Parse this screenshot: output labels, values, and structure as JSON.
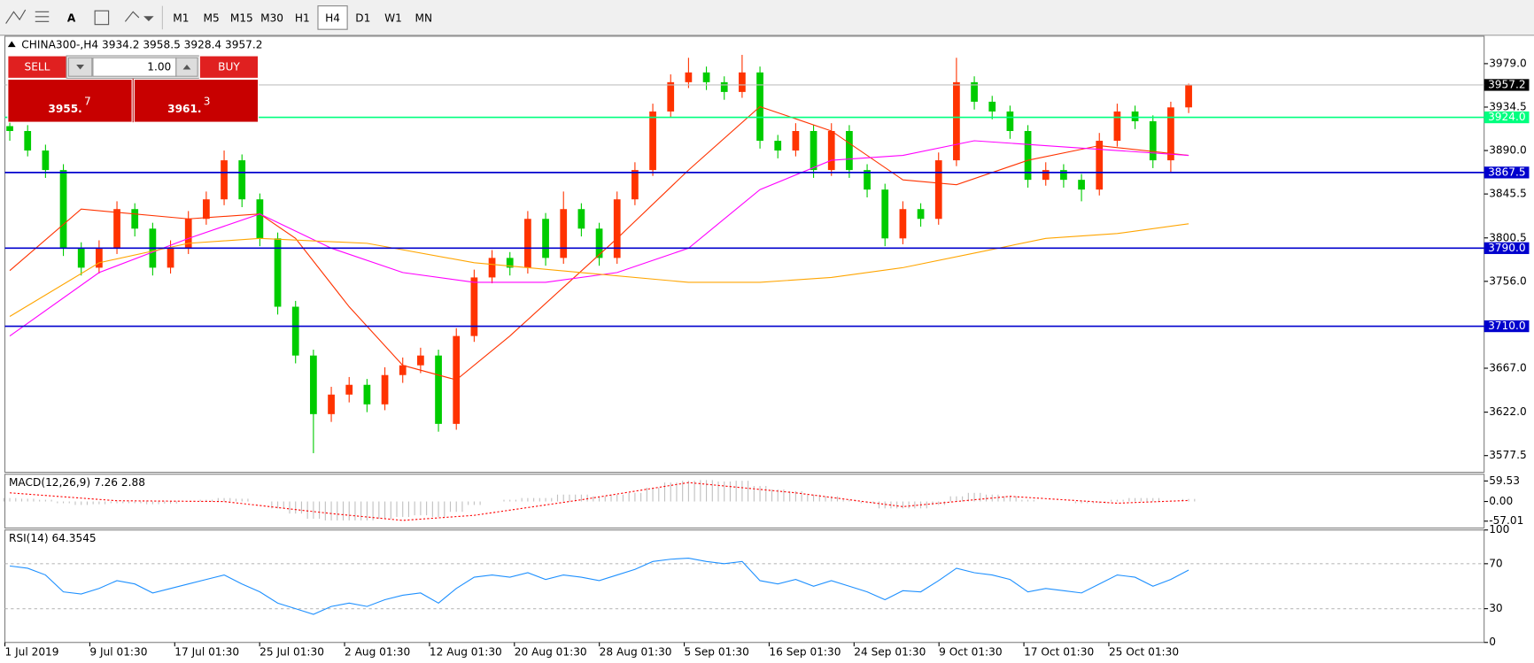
{
  "toolbar": {
    "timeframes": [
      "M1",
      "M5",
      "M15",
      "M30",
      "H1",
      "H4",
      "D1",
      "W1",
      "MN"
    ],
    "active": "H4"
  },
  "trade_panel": {
    "sell": "SELL",
    "lot": "1.00",
    "buy": "BUY",
    "sell_price": {
      "small": "3955.",
      "big": "7"
    },
    "buy_price": {
      "small": "3961.",
      "big": "3"
    }
  },
  "chart_data": [
    {
      "type": "candlestick",
      "title": "CHINA300-,H4  3934.2 3958.5 3928.4 3957.2",
      "up_color": "#ff3300",
      "down_color": "#00cc00",
      "ohlc": [
        [
          3915,
          3920,
          3900,
          3910
        ],
        [
          3910,
          3916,
          3884,
          3890
        ],
        [
          3890,
          3896,
          3862,
          3870
        ],
        [
          3870,
          3876,
          3782,
          3790
        ],
        [
          3790,
          3796,
          3762,
          3770
        ],
        [
          3770,
          3798,
          3764,
          3790
        ],
        [
          3790,
          3838,
          3784,
          3830
        ],
        [
          3830,
          3836,
          3802,
          3810
        ],
        [
          3810,
          3816,
          3762,
          3770
        ],
        [
          3770,
          3798,
          3764,
          3790
        ],
        [
          3790,
          3828,
          3784,
          3820
        ],
        [
          3820,
          3848,
          3814,
          3840
        ],
        [
          3840,
          3890,
          3834,
          3880
        ],
        [
          3880,
          3886,
          3832,
          3840
        ],
        [
          3840,
          3846,
          3792,
          3800
        ],
        [
          3800,
          3806,
          3722,
          3730
        ],
        [
          3730,
          3736,
          3672,
          3680
        ],
        [
          3680,
          3686,
          3580,
          3620
        ],
        [
          3620,
          3648,
          3612,
          3640
        ],
        [
          3640,
          3658,
          3632,
          3650
        ],
        [
          3650,
          3656,
          3622,
          3630
        ],
        [
          3630,
          3668,
          3624,
          3660
        ],
        [
          3660,
          3678,
          3652,
          3670
        ],
        [
          3670,
          3688,
          3662,
          3680
        ],
        [
          3680,
          3686,
          3602,
          3610
        ],
        [
          3610,
          3708,
          3604,
          3700
        ],
        [
          3700,
          3768,
          3694,
          3760
        ],
        [
          3760,
          3788,
          3754,
          3780
        ],
        [
          3780,
          3786,
          3762,
          3770
        ],
        [
          3770,
          3828,
          3764,
          3820
        ],
        [
          3820,
          3826,
          3772,
          3780
        ],
        [
          3780,
          3848,
          3774,
          3830
        ],
        [
          3830,
          3836,
          3802,
          3810
        ],
        [
          3810,
          3816,
          3772,
          3780
        ],
        [
          3780,
          3848,
          3774,
          3840
        ],
        [
          3840,
          3878,
          3834,
          3870
        ],
        [
          3870,
          3938,
          3864,
          3930
        ],
        [
          3930,
          3968,
          3924,
          3960
        ],
        [
          3960,
          3985,
          3954,
          3970
        ],
        [
          3970,
          3976,
          3952,
          3960
        ],
        [
          3960,
          3966,
          3942,
          3950
        ],
        [
          3950,
          3988,
          3944,
          3970
        ],
        [
          3970,
          3976,
          3892,
          3900
        ],
        [
          3900,
          3906,
          3882,
          3890
        ],
        [
          3890,
          3918,
          3884,
          3910
        ],
        [
          3910,
          3916,
          3862,
          3870
        ],
        [
          3870,
          3918,
          3864,
          3910
        ],
        [
          3910,
          3916,
          3862,
          3870
        ],
        [
          3870,
          3876,
          3842,
          3850
        ],
        [
          3850,
          3856,
          3792,
          3800
        ],
        [
          3800,
          3838,
          3794,
          3830
        ],
        [
          3830,
          3836,
          3812,
          3820
        ],
        [
          3820,
          3888,
          3814,
          3880
        ],
        [
          3880,
          3985,
          3874,
          3960
        ],
        [
          3960,
          3966,
          3932,
          3940
        ],
        [
          3940,
          3946,
          3922,
          3930
        ],
        [
          3930,
          3936,
          3902,
          3910
        ],
        [
          3910,
          3916,
          3852,
          3860
        ],
        [
          3860,
          3878,
          3854,
          3870
        ],
        [
          3870,
          3876,
          3852,
          3860
        ],
        [
          3860,
          3866,
          3838,
          3850
        ],
        [
          3850,
          3908,
          3844,
          3900
        ],
        [
          3900,
          3938,
          3894,
          3930
        ],
        [
          3930,
          3936,
          3912,
          3920
        ],
        [
          3920,
          3926,
          3872,
          3880
        ],
        [
          3880,
          3940,
          3868,
          3934.2
        ],
        [
          3934.2,
          3958.5,
          3928.4,
          3957.2
        ]
      ],
      "series": [
        {
          "color": "#ff3300",
          "x": [
            0,
            4,
            10,
            14,
            16,
            19,
            22,
            25,
            28,
            31,
            34,
            38,
            42,
            46,
            50,
            53,
            57,
            61,
            66
          ],
          "values": [
            3767,
            3830,
            3820,
            3825,
            3800,
            3730,
            3670,
            3655,
            3700,
            3750,
            3800,
            3870,
            3935,
            3910,
            3860,
            3855,
            3880,
            3895,
            3885
          ]
        },
        {
          "color": "#ff00ff",
          "x": [
            0,
            5,
            10,
            14,
            18,
            22,
            26,
            30,
            34,
            38,
            42,
            46,
            50,
            54,
            58,
            62,
            66
          ],
          "values": [
            3700,
            3765,
            3800,
            3825,
            3790,
            3765,
            3755,
            3755,
            3765,
            3790,
            3850,
            3880,
            3885,
            3900,
            3895,
            3890,
            3885
          ]
        },
        {
          "color": "#ffa500",
          "x": [
            0,
            5,
            10,
            14,
            20,
            26,
            32,
            38,
            42,
            46,
            50,
            54,
            58,
            62,
            66
          ],
          "values": [
            3720,
            3775,
            3795,
            3800,
            3795,
            3775,
            3765,
            3755,
            3755,
            3760,
            3770,
            3785,
            3800,
            3805,
            3815
          ]
        }
      ],
      "ylim": [
        3561.4,
        4007.1
      ],
      "yticks": [
        {
          "value": 3979,
          "label": "3979.0"
        },
        {
          "value": 3934.5,
          "label": "3934.5"
        },
        {
          "value": 3890,
          "label": "3890.0"
        },
        {
          "value": 3845.5,
          "label": "3845.5"
        },
        {
          "value": 3800.5,
          "label": "3800.5"
        },
        {
          "value": 3756,
          "label": "3756.0"
        },
        {
          "value": 3667,
          "label": "3667.0"
        },
        {
          "value": 3622,
          "label": "3622.0"
        },
        {
          "value": 3577.5,
          "label": "3577.5"
        }
      ],
      "levels": [
        {
          "value": 3924,
          "label": "3924.0",
          "color": "#00ff7f"
        },
        {
          "value": 3867.5,
          "label": "3867.5",
          "color": "#0000cd"
        },
        {
          "value": 3790,
          "label": "3790.0",
          "color": "#0000cd"
        },
        {
          "value": 3710,
          "label": "3710.0",
          "color": "#0000cd"
        }
      ],
      "bid": {
        "value": 3957.2,
        "label": "3957.2"
      },
      "date_labels": [
        "1 Jul 2019",
        "9 Jul 01:30",
        "17 Jul 01:30",
        "25 Jul 01:30",
        "2 Aug 01:30",
        "12 Aug 01:30",
        "20 Aug 01:30",
        "28 Aug 01:30",
        "5 Sep 01:30",
        "16 Sep 01:30",
        "24 Sep 01:30",
        "9 Oct 01:30",
        "17 Oct 01:30",
        "25 Oct 01:30"
      ]
    },
    {
      "type": "macd",
      "title": "MACD(12,26,9) 7.26 2.88",
      "color": "#c0c0c0",
      "values": [
        10,
        8,
        5,
        -5,
        -10,
        -8,
        -5,
        -5,
        -8,
        -6,
        0,
        5,
        10,
        8,
        0,
        -20,
        -35,
        -50,
        -55,
        -55,
        -55,
        -50,
        -45,
        -40,
        -45,
        -30,
        -10,
        0,
        5,
        10,
        10,
        20,
        20,
        15,
        20,
        25,
        40,
        55,
        60,
        62,
        58,
        60,
        45,
        35,
        30,
        20,
        15,
        5,
        -5,
        -20,
        -20,
        -20,
        -10,
        15,
        25,
        20,
        15,
        5,
        0,
        0,
        -5,
        -5,
        5,
        10,
        10,
        0,
        7.26
      ],
      "signal": {
        "color": "#ff0000",
        "x": [
          0,
          6,
          12,
          18,
          22,
          26,
          32,
          38,
          44,
          50,
          56,
          62,
          66
        ],
        "values": [
          25,
          2,
          0,
          -35,
          -55,
          -40,
          5,
          55,
          25,
          -15,
          15,
          -5,
          2.88
        ]
      },
      "ylim": [
        -77,
        79
      ],
      "yticks": [
        59.53,
        {
          "value": 0,
          "label": "0.00"
        },
        -57.01
      ]
    },
    {
      "type": "line",
      "title": "RSI(14) 64.3545",
      "color": "#1e90ff",
      "values": [
        68,
        66,
        60,
        45,
        43,
        48,
        55,
        52,
        44,
        48,
        52,
        56,
        60,
        52,
        45,
        35,
        30,
        25,
        32,
        35,
        32,
        38,
        42,
        44,
        35,
        48,
        58,
        60,
        58,
        62,
        56,
        60,
        58,
        55,
        60,
        65,
        72,
        74,
        75,
        72,
        70,
        72,
        55,
        52,
        56,
        50,
        55,
        50,
        45,
        38,
        46,
        45,
        55,
        66,
        62,
        60,
        56,
        45,
        48,
        46,
        44,
        52,
        60,
        58,
        50,
        56,
        64.3545
      ],
      "ylim": [
        0,
        100
      ],
      "yticks": [
        100,
        70,
        30,
        0
      ],
      "levels": [
        70,
        30
      ]
    }
  ]
}
